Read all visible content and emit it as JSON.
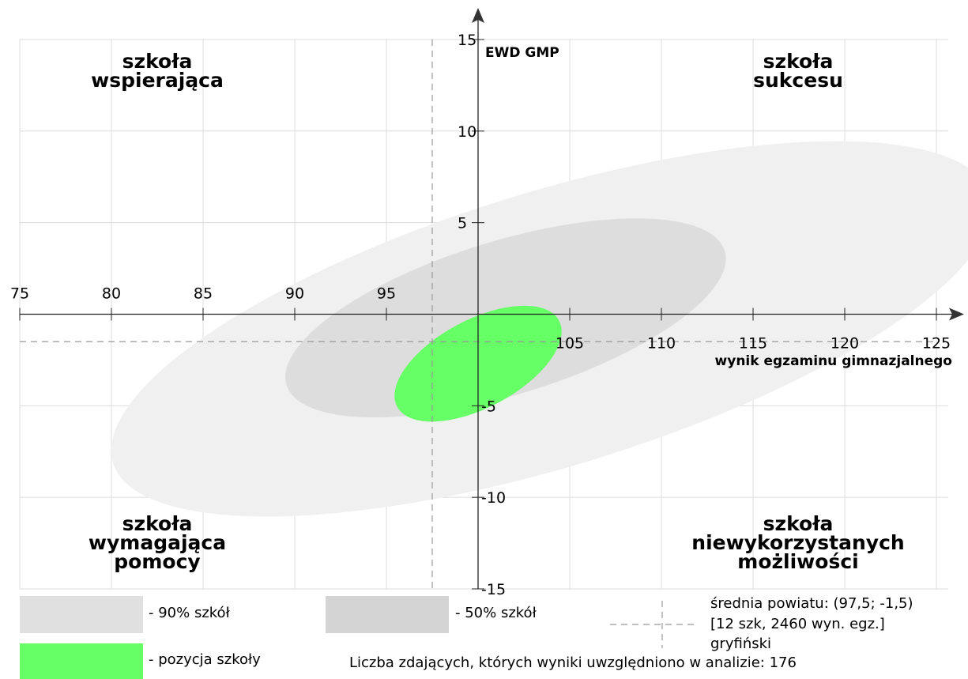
{
  "chart_data": {
    "type": "scatter",
    "title": "",
    "xlabel": "wynik egzaminu gimnazjalnego",
    "ylabel": "EWD GMP",
    "xlim": [
      75,
      125
    ],
    "ylim": [
      -15,
      15
    ],
    "x_ticks": [
      "75",
      "80",
      "85",
      "90",
      "95",
      "105",
      "110",
      "115",
      "120",
      "125"
    ],
    "y_ticks": [
      "15",
      "10",
      "5",
      "-5",
      "-10",
      "-15"
    ],
    "grid": true,
    "quadrants": {
      "top_left": [
        "szkoła",
        "wspierająca"
      ],
      "top_right": [
        "szkoła",
        "sukcesu"
      ],
      "bottom_left": [
        "szkoła",
        "wymagająca",
        "pomocy"
      ],
      "bottom_right": [
        "szkoła",
        "niewykorzystanych",
        "możliwości"
      ]
    },
    "reference_lines": {
      "x": 97.5,
      "y": -1.5
    },
    "series": [
      {
        "name": "90% szkół",
        "shape": "ellipse",
        "cx": 104,
        "cy": -0.8,
        "rx": 25,
        "ry": 7.5,
        "angle_deg": 17,
        "color": "#f0f0f0"
      },
      {
        "name": "50% szkół",
        "shape": "ellipse",
        "cx": 101.5,
        "cy": -0.2,
        "rx": 12.5,
        "ry": 4.2,
        "angle_deg": 17,
        "color": "#dddddd"
      },
      {
        "name": "pozycja szkoły",
        "shape": "ellipse",
        "cx": 100,
        "cy": -2.7,
        "rx": 5,
        "ry": 2.4,
        "angle_deg": 28,
        "color": "#66ff66"
      }
    ]
  },
  "legend": {
    "band90": {
      "label": "- 90% szkół",
      "color": "#e0e0e0"
    },
    "band50": {
      "label": "- 50% szkół",
      "color": "#d4d4d4"
    },
    "school": {
      "label": "- pozycja szkoły",
      "color": "#66ff66"
    },
    "mean_lines": [
      "średnia powiatu: (97,5; -1,5)",
      "[12 szk, 2460 wyn. egz.]",
      "gryfiński"
    ],
    "footer": "Liczba zdających, których wyniki uwzględniono w analizie: 176"
  }
}
